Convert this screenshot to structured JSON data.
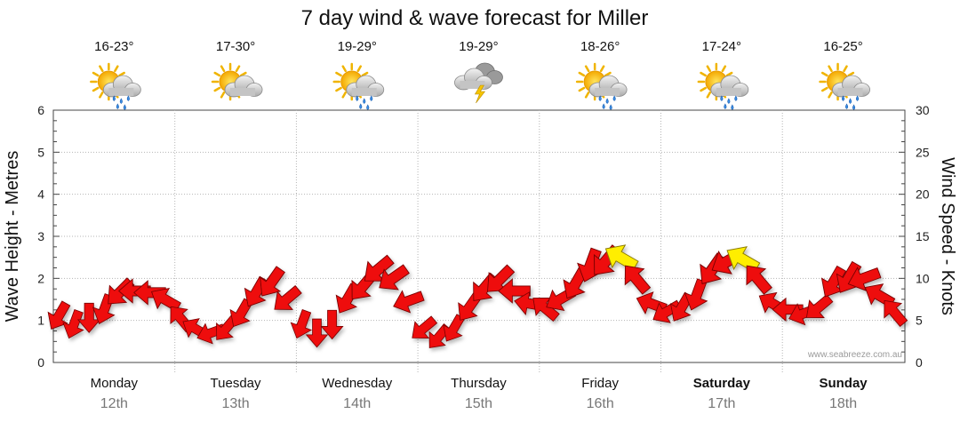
{
  "header": {
    "title": "7 day wind & wave forecast for Miller"
  },
  "watermark": "www.seabreeze.com.au",
  "days": [
    {
      "name": "Monday",
      "date": "12th",
      "temp": "16-23°",
      "icon": "sun-cloud-rain-icon",
      "bold": false
    },
    {
      "name": "Tuesday",
      "date": "13th",
      "temp": "17-30°",
      "icon": "sun-cloud-icon",
      "bold": false
    },
    {
      "name": "Wednesday",
      "date": "14th",
      "temp": "19-29°",
      "icon": "sun-cloud-rain-icon",
      "bold": false
    },
    {
      "name": "Thursday",
      "date": "15th",
      "temp": "19-29°",
      "icon": "thunderstorm-icon",
      "bold": false
    },
    {
      "name": "Friday",
      "date": "16th",
      "temp": "18-26°",
      "icon": "sun-cloud-rain-icon",
      "bold": false
    },
    {
      "name": "Saturday",
      "date": "17th",
      "temp": "17-24°",
      "icon": "sun-cloud-rain-icon",
      "bold": true
    },
    {
      "name": "Sunday",
      "date": "18th",
      "temp": "16-25°",
      "icon": "sun-cloud-rain-icon",
      "bold": true
    }
  ],
  "colors": {
    "wind_arrow": "#ee1111",
    "wind_arrow_strong": "#ffee00",
    "grid": "#b5b5b5",
    "day_date": "#777777"
  },
  "chart_data": {
    "type": "line",
    "title": "7 day wind & wave forecast for Miller",
    "ylabel_left": "Wave Height - Metres",
    "ylabel_right": "Wind Speed - Knots",
    "yticks_left": [
      "0",
      "1",
      "2",
      "3",
      "4",
      "5",
      "6"
    ],
    "yticks_right": [
      "0",
      "5",
      "10",
      "15",
      "20",
      "25",
      "30"
    ],
    "ylim_left": [
      0,
      6
    ],
    "ylim_right": [
      0,
      30
    ],
    "grid": true,
    "x_categories": [
      "Monday 12th",
      "Tuesday 13th",
      "Wednesday 14th",
      "Thursday 15th",
      "Friday 16th",
      "Saturday 17th",
      "Sunday 18th"
    ],
    "series": [
      {
        "x_days": [
          0,
          0.125,
          0.25,
          0.375,
          0.5,
          0.625,
          0.75,
          0.875,
          1,
          1.125,
          1.25,
          1.375,
          1.5,
          1.625,
          1.75,
          1.875,
          2,
          2.125,
          2.25,
          2.375,
          2.5,
          2.625,
          2.75,
          2.875,
          3,
          3.125,
          3.25,
          3.375,
          3.5,
          3.625,
          3.75,
          3.875,
          4,
          4.125,
          4.25,
          4.375,
          4.5,
          4.625,
          4.75,
          4.875,
          5,
          5.125,
          5.25,
          5.375,
          5.5,
          5.625,
          5.75,
          5.875,
          6,
          6.125,
          6.25,
          6.375,
          6.5,
          6.625,
          6.75,
          6.875
        ],
        "wind_knots": [
          5.5,
          4.5,
          5.3,
          6.3,
          8.3,
          8.5,
          8.3,
          7.5,
          5.3,
          4.0,
          3.5,
          4.0,
          5.8,
          8.3,
          9.5,
          7.5,
          4.5,
          3.5,
          4.5,
          7.5,
          9.0,
          11.0,
          10.0,
          7.3,
          4.0,
          3.0,
          4.0,
          6.5,
          8.8,
          9.8,
          8.5,
          7.0,
          6.5,
          7.5,
          9.3,
          11.5,
          12.0,
          12.5,
          10.0,
          7.0,
          6.0,
          6.5,
          8.0,
          11.0,
          12.0,
          12.3,
          10.0,
          7.0,
          6.3,
          5.8,
          6.5,
          9.5,
          10.0,
          10.0,
          8.0,
          6.0
        ],
        "wind_dir_deg": [
          210,
          200,
          180,
          200,
          225,
          270,
          270,
          300,
          320,
          300,
          250,
          220,
          210,
          210,
          215,
          230,
          200,
          180,
          180,
          210,
          220,
          230,
          235,
          250,
          230,
          220,
          210,
          215,
          220,
          225,
          270,
          280,
          310,
          240,
          210,
          200,
          220,
          300,
          320,
          290,
          240,
          210,
          200,
          215,
          240,
          300,
          320,
          300,
          270,
          250,
          230,
          210,
          210,
          250,
          300,
          320
        ]
      }
    ]
  }
}
